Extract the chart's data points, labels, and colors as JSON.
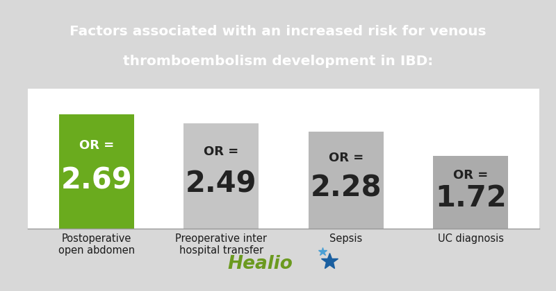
{
  "title_line1": "Factors associated with an increased risk for venous",
  "title_line2": "thromboembolism development in IBD:",
  "title_bg_color": "#6b9a1f",
  "title_text_color": "#ffffff",
  "categories": [
    "Postoperative\nopen abdomen",
    "Preoperative inter\nhospital transfer",
    "Sepsis",
    "UC diagnosis"
  ],
  "values": [
    2.69,
    2.49,
    2.28,
    1.72
  ],
  "or_labels": [
    "2.69",
    "2.49",
    "2.28",
    "1.72"
  ],
  "bar_colors": [
    "#6aab1e",
    "#c5c5c5",
    "#b8b8b8",
    "#ababab"
  ],
  "bar_text_colors": [
    "#ffffff",
    "#222222",
    "#222222",
    "#222222"
  ],
  "chart_bg_color": "#ffffff",
  "outer_bg_color": "#d8d8d8",
  "sep_color": "#cccccc",
  "healio_text": "Healio",
  "healio_color": "#6b9a1f",
  "healio_star_color": "#1a5fa0",
  "ymax": 3.3,
  "title_fontsize": 14.5,
  "bar_label_fontsize": 30,
  "or_eq_fontsize": 13,
  "cat_fontsize": 10.5
}
